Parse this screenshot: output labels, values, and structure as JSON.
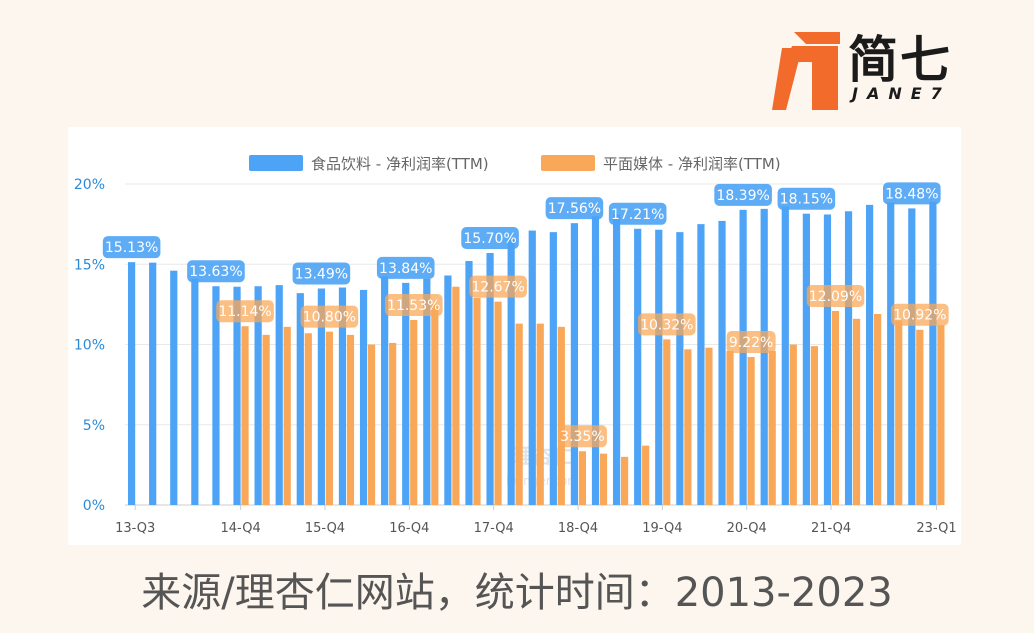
{
  "logo": {
    "text": "简七",
    "sub": "JANE7",
    "color": "#f26b2a"
  },
  "caption": "来源/理杏仁网站，统计时间：2013-2023",
  "watermark": {
    "line1": "理杏仁",
    "line2": "lixinger.com"
  },
  "chart_data": {
    "type": "bar",
    "title": "",
    "legend_position": "top",
    "ylim": [
      0,
      20
    ],
    "y_ticks": [
      "0%",
      "5%",
      "10%",
      "15%",
      "20%"
    ],
    "x_tick_labels": [
      "13-Q3",
      "14-Q4",
      "15-Q4",
      "16-Q4",
      "17-Q4",
      "18-Q4",
      "19-Q4",
      "20-Q4",
      "21-Q4",
      "23-Q1"
    ],
    "series": [
      {
        "name": "食品饮料 - 净利润率(TTM)",
        "color": "#4da3f5",
        "values": [
          15.13,
          15.1,
          14.6,
          14.1,
          13.63,
          13.6,
          13.63,
          13.7,
          13.2,
          13.49,
          13.55,
          13.4,
          14.25,
          13.84,
          14.1,
          14.3,
          15.2,
          15.7,
          16.5,
          17.1,
          17.0,
          17.56,
          18.0,
          18.1,
          17.21,
          17.15,
          17.0,
          17.5,
          17.7,
          18.39,
          18.45,
          18.6,
          18.15,
          18.1,
          18.3,
          18.7,
          18.85,
          18.48,
          18.9
        ],
        "labels": [
          {
            "index": 0,
            "text": "15.13%"
          },
          {
            "index": 4,
            "text": "13.63%"
          },
          {
            "index": 9,
            "text": "13.49%"
          },
          {
            "index": 13,
            "text": "13.84%"
          },
          {
            "index": 17,
            "text": "15.70%"
          },
          {
            "index": 21,
            "text": "17.56%"
          },
          {
            "index": 24,
            "text": "17.21%"
          },
          {
            "index": 29,
            "text": "18.39%"
          },
          {
            "index": 32,
            "text": "18.15%"
          },
          {
            "index": 37,
            "text": "18.48%"
          }
        ]
      },
      {
        "name": "平面媒体 - 净利润率(TTM)",
        "color": "#f9a85a",
        "values": [
          null,
          null,
          null,
          null,
          null,
          11.14,
          10.6,
          11.1,
          10.7,
          10.8,
          10.6,
          10.0,
          10.1,
          11.53,
          12.5,
          13.6,
          12.9,
          12.67,
          11.3,
          11.3,
          11.1,
          3.35,
          3.2,
          3.0,
          3.7,
          10.32,
          9.7,
          9.8,
          9.6,
          9.22,
          9.6,
          10.0,
          9.9,
          12.09,
          11.6,
          11.9,
          11.5,
          10.92,
          11.2
        ],
        "labels": [
          {
            "index": 5,
            "text": "11.14%"
          },
          {
            "index": 9,
            "text": "10.80%"
          },
          {
            "index": 13,
            "text": "11.53%"
          },
          {
            "index": 17,
            "text": "12.67%"
          },
          {
            "index": 21,
            "text": "3.35%"
          },
          {
            "index": 25,
            "text": "10.32%"
          },
          {
            "index": 29,
            "text": "9.22%"
          },
          {
            "index": 33,
            "text": "12.09%"
          },
          {
            "index": 37,
            "text": "10.92%"
          }
        ]
      }
    ]
  }
}
